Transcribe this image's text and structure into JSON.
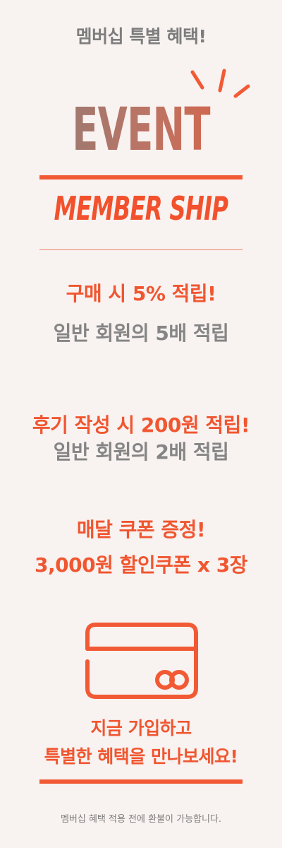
{
  "header": {
    "title": "멤버십 특별 혜택!"
  },
  "hero": {
    "event_text": "EVENT",
    "member_text": "MEMBER SHIP",
    "sparkle_icon": "sparkle-lines-icon"
  },
  "benefits": [
    {
      "headline": "구매 시 5% 적립!",
      "detail": "일반 회원의 5배 적립"
    },
    {
      "headline": "후기 작성 시 200원 적립!",
      "detail": "일반 회원의 2배 적립"
    },
    {
      "headline": "매달 쿠폰 증정!",
      "detail": "3,000원 할인쿠폰 x 3장"
    }
  ],
  "cta": {
    "icon": "membership-card-icon",
    "line1": "지금 가입하고",
    "line2": "특별한 혜택을 만나보세요!"
  },
  "footer": {
    "note": "멤버십 혜택 적용 전에 환불이 가능합니다."
  },
  "colors": {
    "background": "#f8f2f0",
    "accent": "#f05630",
    "gray_text": "#858585",
    "event_gradient_start": "#957a73",
    "event_gradient_end": "#d86246"
  }
}
